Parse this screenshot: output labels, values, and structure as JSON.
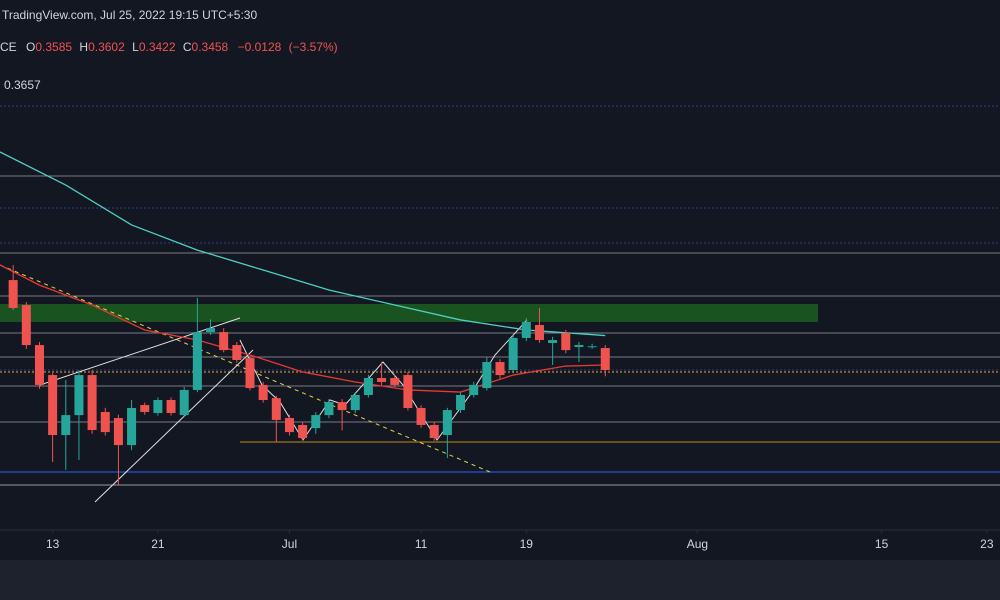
{
  "chart_data": {
    "type": "candlestick",
    "header": "TradingView.com, Jul 25, 2022 19:15 UTC+5:30",
    "symbol": "CE",
    "ohlc_labels": [
      "O",
      "H",
      "L",
      "C"
    ],
    "change": "−0.0128",
    "change_pct": "(−3.57%)",
    "x": [
      "2022-06-10",
      "2022-06-11",
      "2022-06-12",
      "2022-06-13",
      "2022-06-14",
      "2022-06-15",
      "2022-06-16",
      "2022-06-17",
      "2022-06-18",
      "2022-06-19",
      "2022-06-20",
      "2022-06-21",
      "2022-06-22",
      "2022-06-23",
      "2022-06-24",
      "2022-06-25",
      "2022-06-26",
      "2022-06-27",
      "2022-06-28",
      "2022-06-29",
      "2022-06-30",
      "2022-07-01",
      "2022-07-02",
      "2022-07-03",
      "2022-07-04",
      "2022-07-05",
      "2022-07-06",
      "2022-07-07",
      "2022-07-08",
      "2022-07-09",
      "2022-07-10",
      "2022-07-11",
      "2022-07-12",
      "2022-07-13",
      "2022-07-14",
      "2022-07-15",
      "2022-07-16",
      "2022-07-17",
      "2022-07-18",
      "2022-07-19",
      "2022-07-20",
      "2022-07-21",
      "2022-07-22",
      "2022-07-23",
      "2022-07-24",
      "2022-07-25"
    ],
    "open": [
      0.3977,
      0.3833,
      0.3602,
      0.3429,
      0.3083,
      0.3198,
      0.3429,
      0.3216,
      0.3181,
      0.3025,
      0.3256,
      0.321,
      0.3285,
      0.3198,
      0.3343,
      0.3677,
      0.3677,
      0.3602,
      0.3527,
      0.3372,
      0.3296,
      0.3181,
      0.3141,
      0.3123,
      0.3198,
      0.3273,
      0.3227,
      0.3314,
      0.3412,
      0.3412,
      0.3429,
      0.3239,
      0.3141,
      0.3083,
      0.3227,
      0.3314,
      0.3354,
      0.3504,
      0.3458,
      0.3643,
      0.3718,
      0.3614,
      0.3672,
      0.3591,
      0.3591,
      0.3585
    ],
    "high": [
      0.4064,
      0.385,
      0.362,
      0.344,
      0.34,
      0.3458,
      0.3458,
      0.324,
      0.32,
      0.3285,
      0.327,
      0.33,
      0.33,
      0.336,
      0.3874,
      0.375,
      0.37,
      0.362,
      0.354,
      0.339,
      0.331,
      0.32,
      0.316,
      0.3215,
      0.329,
      0.329,
      0.333,
      0.343,
      0.3504,
      0.343,
      0.3445,
      0.3255,
      0.316,
      0.324,
      0.333,
      0.339,
      0.353,
      0.352,
      0.366,
      0.3758,
      0.3816,
      0.365,
      0.369,
      0.362,
      0.361,
      0.3602
    ],
    "low": [
      0.3804,
      0.358,
      0.335,
      0.2927,
      0.2881,
      0.2939,
      0.309,
      0.308,
      0.2795,
      0.2996,
      0.32,
      0.3195,
      0.3195,
      0.319,
      0.333,
      0.366,
      0.356,
      0.35,
      0.334,
      0.327,
      0.3043,
      0.308,
      0.305,
      0.309,
      0.318,
      0.311,
      0.321,
      0.33,
      0.337,
      0.336,
      0.3225,
      0.3125,
      0.305,
      0.295,
      0.321,
      0.33,
      0.334,
      0.341,
      0.344,
      0.3625,
      0.3615,
      0.3487,
      0.3555,
      0.3504,
      0.358,
      0.3422
    ],
    "close": [
      0.3816,
      0.3602,
      0.3372,
      0.3083,
      0.3198,
      0.3429,
      0.3112,
      0.31,
      0.3025,
      0.3239,
      0.3216,
      0.3285,
      0.321,
      0.3343,
      0.3677,
      0.37,
      0.3573,
      0.3516,
      0.3354,
      0.3285,
      0.317,
      0.31,
      0.3066,
      0.3198,
      0.3273,
      0.3227,
      0.3314,
      0.3412,
      0.3389,
      0.3372,
      0.3239,
      0.3141,
      0.3066,
      0.3227,
      0.3314,
      0.3372,
      0.3504,
      0.3429,
      0.3643,
      0.3735,
      0.3631,
      0.3631,
      0.3573,
      0.3602,
      0.3595,
      0.3458
    ],
    "up_color": "#26a69a",
    "down_color": "#ef5350",
    "overlays": [
      {
        "color": "#4dd0c0",
        "x": [
          "2022-06-09",
          "2022-06-14",
          "2022-06-19",
          "2022-06-24",
          "2022-06-29",
          "2022-07-04",
          "2022-07-09",
          "2022-07-14",
          "2022-07-19",
          "2022-07-25"
        ],
        "values": [
          0.4716,
          0.4525,
          0.4295,
          0.415,
          0.4035,
          0.392,
          0.3833,
          0.3747,
          0.3689,
          0.3657
        ]
      },
      {
        "color": "#e53935",
        "x": [
          "2022-06-09",
          "2022-06-12",
          "2022-06-16",
          "2022-06-20",
          "2022-06-24",
          "2022-06-28",
          "2022-07-02",
          "2022-07-06",
          "2022-07-10",
          "2022-07-14",
          "2022-07-18",
          "2022-07-22",
          "2022-07-25"
        ],
        "values": [
          0.4064,
          0.3948,
          0.3833,
          0.3689,
          0.3631,
          0.3545,
          0.3447,
          0.3389,
          0.3343,
          0.3331,
          0.3429,
          0.3481,
          0.3487
        ]
      }
    ],
    "xlim": [
      "2022-06-09",
      "2022-08-24"
    ],
    "ylim": [
      0.2535,
      0.5593
    ],
    "xticks": [
      {
        "value": "2022-06-13",
        "label": "13"
      },
      {
        "value": "2022-06-21",
        "label": "21"
      },
      {
        "value": "2022-07-01",
        "label": "Jul"
      },
      {
        "value": "2022-07-11",
        "label": "11"
      },
      {
        "value": "2022-07-19",
        "label": "19"
      },
      {
        "value": "2022-08-01",
        "label": "Aug"
      },
      {
        "value": "2022-08-15",
        "label": "15"
      },
      {
        "value": "2022-08-23",
        "label": "23"
      }
    ]
  }
}
